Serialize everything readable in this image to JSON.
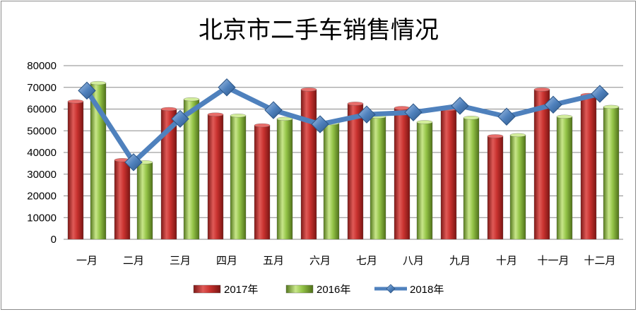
{
  "chart_data": {
    "type": "bar",
    "title": "北京市二手车销售情况",
    "categories": [
      "一月",
      "二月",
      "三月",
      "四月",
      "五月",
      "六月",
      "七月",
      "八月",
      "九月",
      "十月",
      "十一月",
      "十二月"
    ],
    "series": [
      {
        "name": "2017年",
        "type": "bar",
        "color": "#c0312f",
        "values": [
          63500,
          36500,
          60000,
          57500,
          52500,
          69000,
          62500,
          60500,
          60000,
          47500,
          69000,
          66500
        ]
      },
      {
        "name": "2016年",
        "type": "bar",
        "color": "#8ab83a",
        "values": [
          72000,
          35500,
          64500,
          57000,
          55500,
          53500,
          56500,
          54000,
          56000,
          48000,
          56500,
          61000
        ]
      },
      {
        "name": "2018年",
        "type": "line",
        "color": "#4f81bd",
        "values": [
          68500,
          35500,
          55500,
          70000,
          59500,
          53000,
          57500,
          58500,
          61500,
          56500,
          62000,
          67000
        ]
      }
    ],
    "yticks": [
      "0",
      "10000",
      "20000",
      "30000",
      "40000",
      "50000",
      "60000",
      "70000",
      "80000"
    ],
    "ylim": [
      0,
      80000
    ],
    "grid": true,
    "legend_position": "bottom"
  }
}
